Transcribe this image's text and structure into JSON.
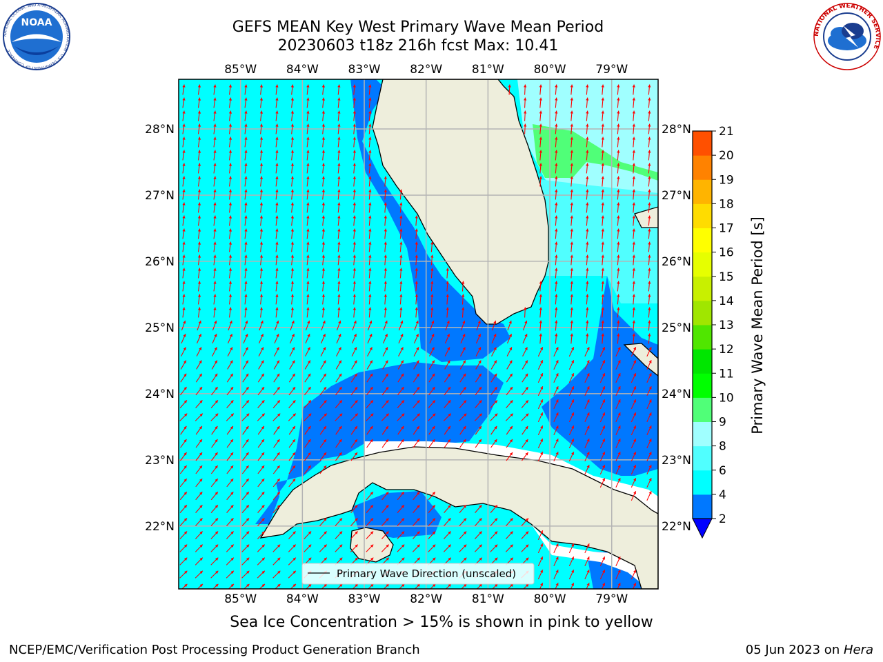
{
  "header": {
    "title_line1": "GEFS MEAN Key West Primary Wave Mean Period",
    "title_line2": "20230603 t18z 216h fcst   Max: 10.41"
  },
  "map": {
    "lon_labels": [
      "85°W",
      "84°W",
      "83°W",
      "82°W",
      "81°W",
      "80°W",
      "79°W"
    ],
    "lat_labels": [
      "28°N",
      "27°N",
      "26°N",
      "25°N",
      "24°N",
      "23°N",
      "22°N"
    ],
    "lon_range": [
      -86.0,
      -78.25
    ],
    "lat_range": [
      21.05,
      28.75
    ],
    "legend_label": "Primary Wave Direction (unscaled)",
    "colors": {
      "land": "#eeeedc",
      "band_2_4": "#0078ff",
      "band_4_6": "#00ffff",
      "band_6_8": "#50ffff",
      "band_8_9": "#a0ffff",
      "band_9_10": "#50ff78",
      "arrow": "#ff0000",
      "grid": "#b4b4b4"
    }
  },
  "colorbar": {
    "label": "Primary Wave Mean Period [s]",
    "ticks": [
      "2",
      "4",
      "6",
      "8",
      "9",
      "10",
      "11",
      "12",
      "13",
      "14",
      "15",
      "16",
      "17",
      "18",
      "19",
      "20",
      "21"
    ],
    "colors": [
      "#0078ff",
      "#00ffff",
      "#50ffff",
      "#a0ffff",
      "#50ff78",
      "#00ff00",
      "#00e600",
      "#50e600",
      "#a0e600",
      "#c8f000",
      "#e6ff00",
      "#ffff00",
      "#ffdc00",
      "#ffb400",
      "#ff8200",
      "#ff5000",
      "#ff2800",
      "#ff0000"
    ],
    "under_color": "#0000ff"
  },
  "footnote": "Sea Ice Concentration > 15% is shown in pink to yellow",
  "footer": {
    "left": "NCEP/EMC/Verification Post Processing Product Generation Branch",
    "right_date": "05 Jun 2023 on ",
    "right_machine": "Hera"
  },
  "logos": {
    "noaa_text": "NOAA",
    "noaa_ring": "NATIONAL OCEANIC AND ATMOSPHERIC ADMINISTRATION · U.S. DEPARTMENT OF COMMERCE",
    "nws_ring": "NATIONAL WEATHER SERVICE"
  }
}
